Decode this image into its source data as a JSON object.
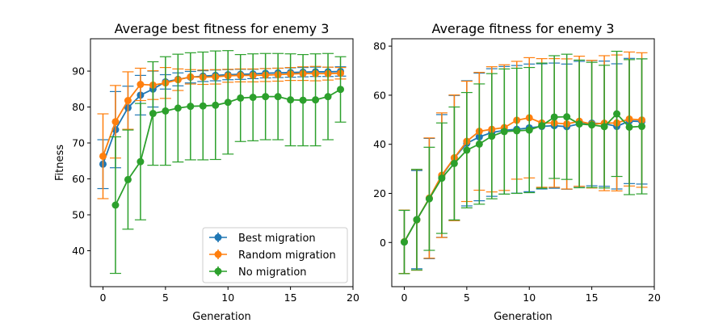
{
  "colors": {
    "best": "#1f77b4",
    "random": "#ff7f0e",
    "none": "#2ca02c"
  },
  "chart_data": [
    {
      "type": "line",
      "title": "Average best fitness for enemy 3",
      "xlabel": "Generation",
      "ylabel": "Fitness",
      "xlim": [
        -1,
        20
      ],
      "ylim": [
        30,
        99
      ],
      "xticks": [
        0,
        5,
        10,
        15,
        20
      ],
      "yticks": [
        40,
        50,
        60,
        70,
        80,
        90
      ],
      "error_bars": true,
      "legend_position": "lower-right",
      "x": [
        0,
        1,
        2,
        3,
        4,
        5,
        6,
        7,
        8,
        9,
        10,
        11,
        12,
        13,
        14,
        15,
        16,
        17,
        18,
        19
      ],
      "series": [
        {
          "name": "Best migration",
          "color_key": "best",
          "values": [
            64.1,
            73.7,
            79.8,
            83.3,
            85.0,
            87.0,
            87.7,
            88.3,
            88.6,
            88.8,
            89.0,
            89.1,
            89.2,
            89.4,
            89.5,
            89.6,
            89.7,
            89.8,
            89.8,
            89.9
          ],
          "err": [
            6.8,
            10.6,
            6.0,
            5.5,
            5.0,
            2.0,
            1.8,
            1.6,
            1.5,
            1.5,
            1.4,
            1.4,
            1.3,
            1.3,
            1.3,
            1.3,
            1.3,
            1.3,
            1.3,
            1.3
          ]
        },
        {
          "name": "Random migration",
          "color_key": "random",
          "values": [
            66.3,
            75.9,
            81.8,
            86.3,
            86.1,
            86.7,
            87.6,
            88.4,
            88.3,
            88.4,
            88.7,
            88.8,
            88.8,
            88.9,
            89.0,
            89.2,
            89.3,
            89.3,
            89.3,
            89.4
          ],
          "err": [
            11.8,
            10.1,
            8.0,
            4.5,
            4.0,
            4.3,
            3.0,
            2.0,
            2.0,
            2.0,
            1.8,
            1.8,
            1.8,
            1.8,
            1.8,
            1.8,
            1.9,
            2.0,
            1.8,
            1.6
          ]
        },
        {
          "name": "No migration",
          "color_key": "none",
          "values": [
            null,
            52.7,
            59.8,
            64.8,
            78.2,
            78.9,
            79.7,
            80.2,
            80.3,
            80.5,
            81.3,
            82.5,
            82.7,
            82.9,
            82.9,
            82.0,
            81.9,
            82.0,
            82.9,
            84.9
          ],
          "err": [
            null,
            19.0,
            13.8,
            16.2,
            14.4,
            15.1,
            15.0,
            14.9,
            15.0,
            15.1,
            14.4,
            12.1,
            12.1,
            12.0,
            12.0,
            12.8,
            12.7,
            12.8,
            12.0,
            9.1
          ]
        }
      ]
    },
    {
      "type": "line",
      "title": "Average fitness for enemy 3",
      "xlabel": "Generation",
      "ylabel": "",
      "xlim": [
        -1,
        20
      ],
      "ylim": [
        -18,
        83
      ],
      "xticks": [
        0,
        5,
        10,
        15,
        20
      ],
      "yticks": [
        0,
        20,
        40,
        60,
        80
      ],
      "error_bars": true,
      "x": [
        0,
        1,
        2,
        3,
        4,
        5,
        6,
        7,
        8,
        9,
        10,
        11,
        12,
        13,
        14,
        15,
        16,
        17,
        18,
        19
      ],
      "series": [
        {
          "name": "Best migration",
          "color_key": "best",
          "values": [
            0.2,
            9.3,
            17.9,
            27.1,
            34.4,
            40.4,
            43.0,
            44.8,
            45.7,
            46.1,
            46.7,
            47.3,
            47.6,
            47.2,
            48.3,
            48.6,
            48.4,
            47.3,
            49.5,
            49.3
          ],
          "err": [
            12.9,
            20.0,
            24.5,
            25.0,
            25.5,
            25.5,
            26.0,
            26.0,
            26.0,
            26.0,
            26.0,
            25.5,
            25.5,
            25.5,
            25.5,
            25.5,
            25.5,
            25.5,
            25.5,
            25.5
          ]
        },
        {
          "name": "Random migration",
          "color_key": "random",
          "values": [
            0.3,
            9.2,
            18.1,
            27.4,
            34.5,
            41.2,
            45.3,
            46.1,
            46.8,
            49.8,
            50.8,
            48.7,
            48.7,
            48.3,
            49.4,
            48.2,
            48.6,
            48.7,
            50.3,
            49.9
          ],
          "err": [
            12.9,
            20.5,
            24.5,
            25.4,
            25.6,
            24.5,
            24.0,
            25.5,
            25.6,
            24.0,
            24.5,
            26.2,
            26.2,
            26.5,
            26.5,
            26.0,
            27.5,
            27.7,
            27.3,
            27.4
          ]
        },
        {
          "name": "No migration",
          "color_key": "none",
          "values": [
            0.2,
            9.3,
            17.8,
            26.2,
            32.2,
            37.6,
            40.1,
            43.3,
            45.2,
            45.5,
            45.8,
            47.6,
            51.1,
            51.2,
            48.3,
            47.9,
            47.2,
            52.4,
            47.0,
            47.3
          ],
          "err": [
            12.9,
            20.5,
            21.0,
            22.5,
            23.0,
            23.5,
            24.5,
            25.5,
            25.5,
            25.5,
            25.5,
            25.5,
            25.0,
            25.5,
            26.0,
            25.5,
            25.0,
            25.5,
            27.5,
            27.5
          ]
        }
      ]
    }
  ]
}
